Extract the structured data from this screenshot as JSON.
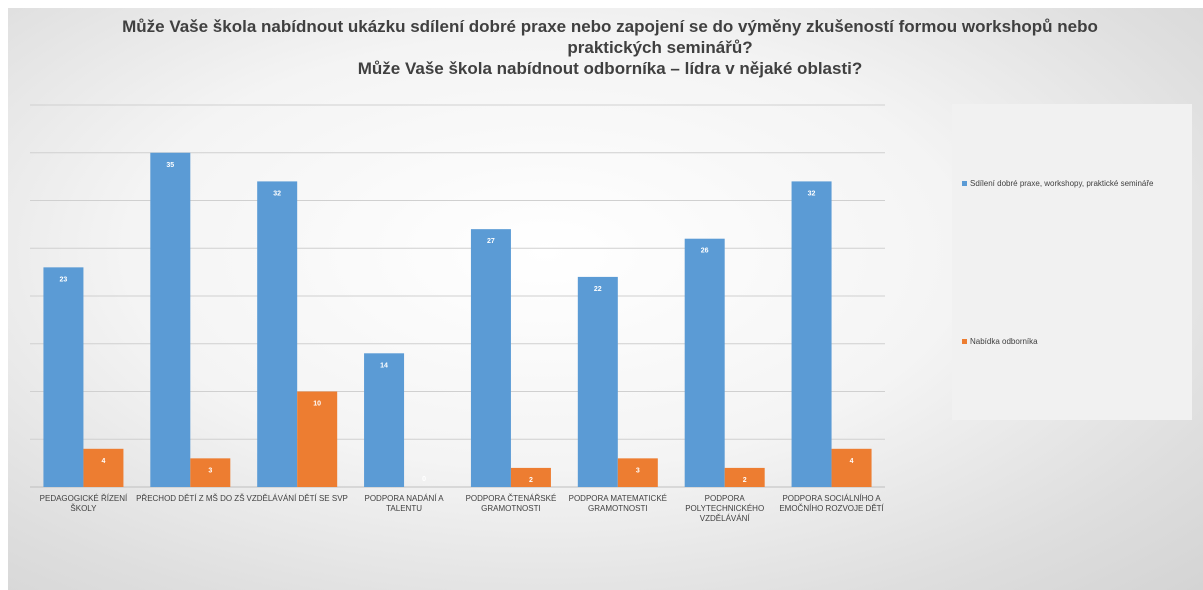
{
  "titles": {
    "line1": "Může Vaše škola nabídnout ukázku sdílení dobré praxe nebo zapojení se do výměny zkušeností formou workshopů nebo",
    "line2": "praktických seminářů?",
    "line3": "Může Vaše škola  nabídnout odborníka – lídra v nějaké oblasti?"
  },
  "legend": {
    "entries": [
      {
        "label": "Sdílení dobré praxe,   workshopy, praktické semináře",
        "color": "#5b9bd5"
      },
      {
        "label": "Nabídka odborníka",
        "color": "#ed7d31"
      }
    ]
  },
  "chart_data": {
    "type": "bar",
    "categories": [
      [
        "PEDAGOGICKÉ ŘÍZENÍ",
        "ŠKOLY"
      ],
      [
        "PŘECHOD DĚTÍ Z MŠ DO ZŠ"
      ],
      [
        "VZDĚLÁVÁNÍ DĚTÍ SE SVP"
      ],
      [
        "PODPORA NADÁNÍ A",
        "TALENTU"
      ],
      [
        "PODPORA ČTENÁŘSKÉ",
        "GRAMOTNOSTI"
      ],
      [
        "PODPORA MATEMATICKÉ",
        "GRAMOTNOSTI"
      ],
      [
        "PODPORA",
        "POLYTECHNICKÉHO",
        "VZDĚLÁVÁNÍ"
      ],
      [
        "PODPORA SOCIÁLNÍHO A",
        "EMOČNÍHO ROZVOJE DĚTÍ"
      ]
    ],
    "series": [
      {
        "name": "Sdílení dobré praxe,   workshopy, praktické semináře",
        "color": "#5b9bd5",
        "values": [
          23,
          35,
          32,
          14,
          27,
          22,
          26,
          32
        ]
      },
      {
        "name": "Nabídka odborníka",
        "color": "#ed7d31",
        "values": [
          4,
          3,
          10,
          0,
          2,
          3,
          2,
          4
        ]
      }
    ],
    "ylim": [
      0,
      40
    ],
    "grid": true,
    "legend": "right"
  }
}
